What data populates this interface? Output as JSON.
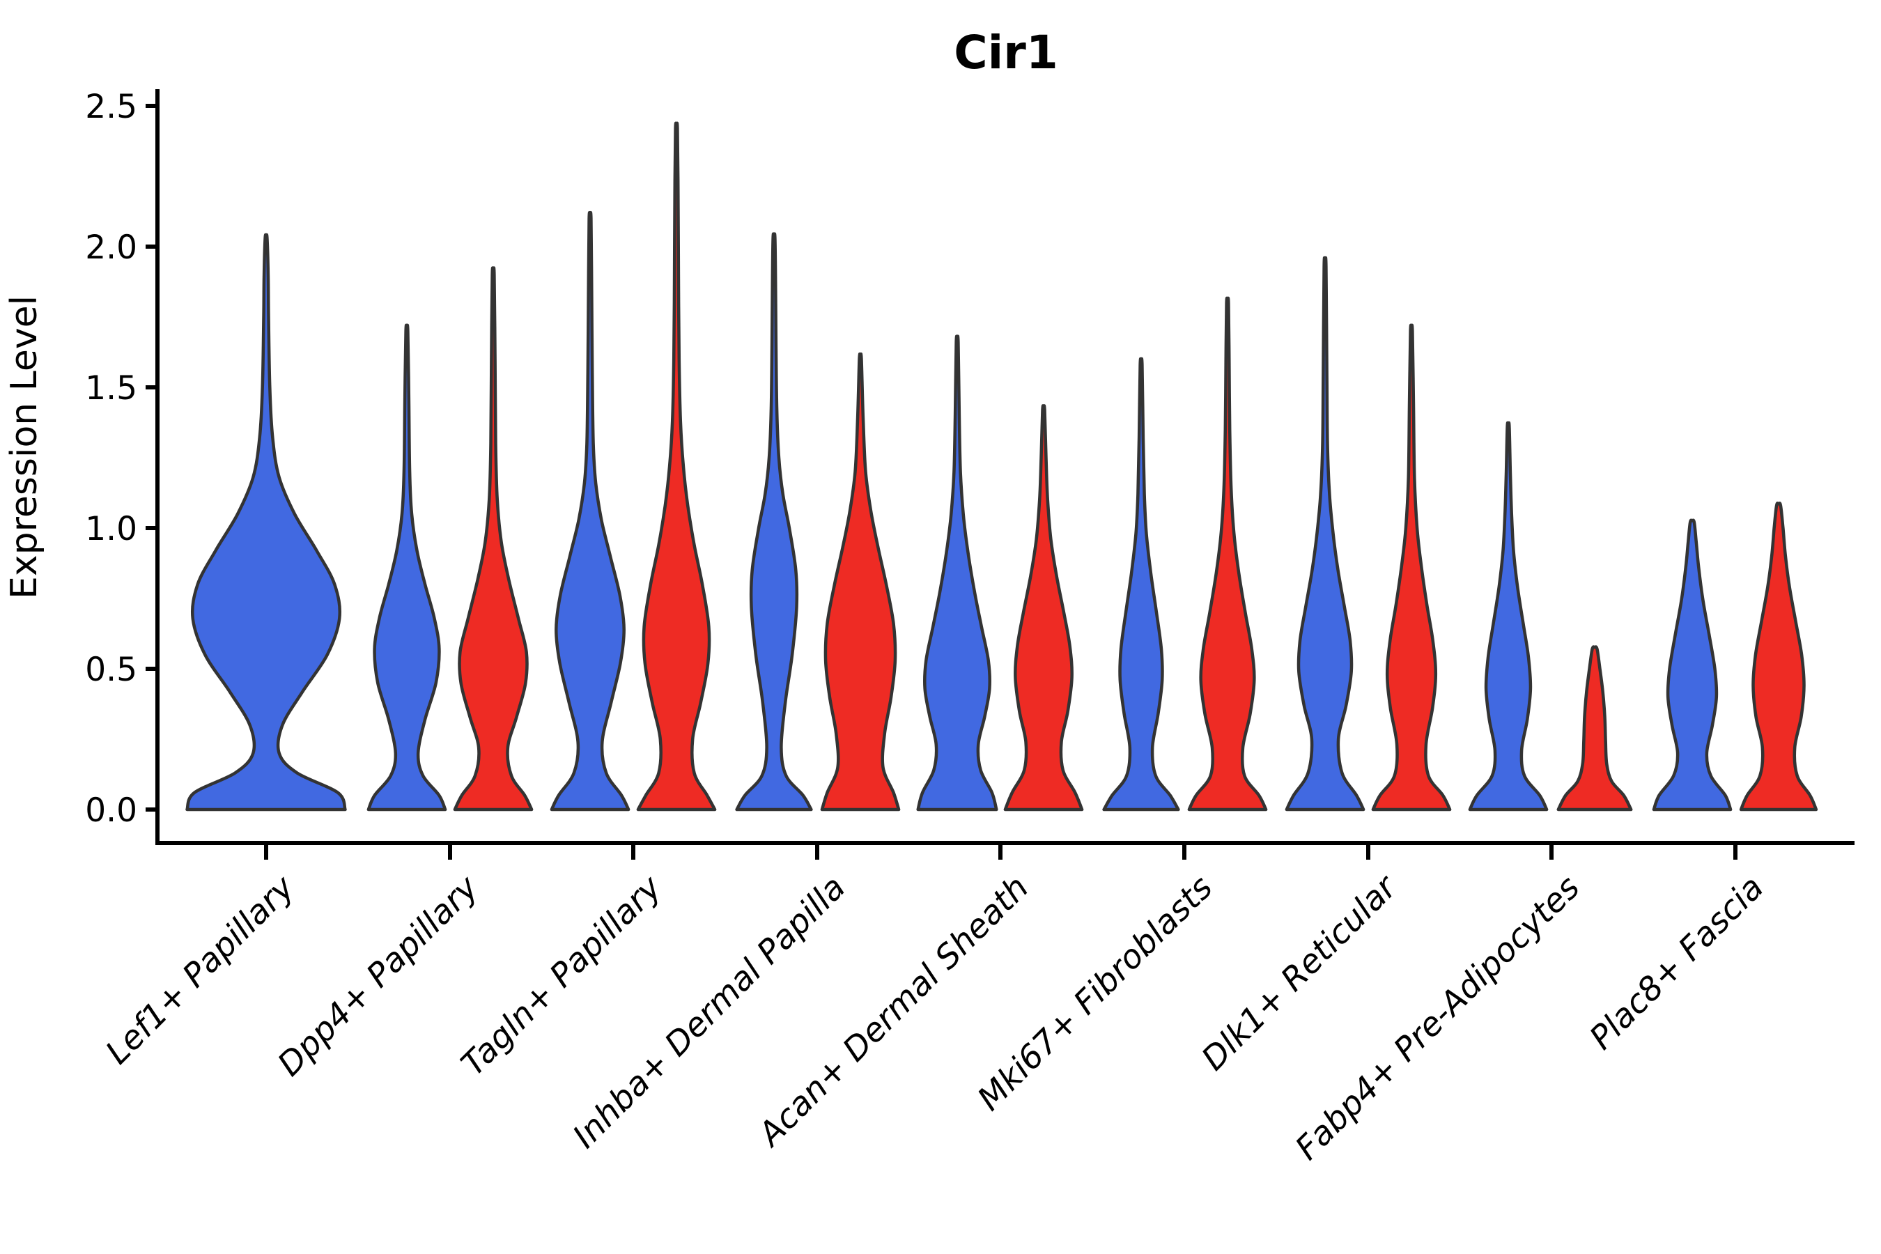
{
  "title": "Cir1",
  "y_axis": {
    "label": "Expression Level",
    "tick_labels": [
      "0.0",
      "0.5",
      "1.0",
      "1.5",
      "2.0",
      "2.5"
    ],
    "tick_values": [
      0,
      0.5,
      1.0,
      1.5,
      2.0,
      2.5
    ]
  },
  "colors": {
    "blue": "#4169E1",
    "red": "#EE2B24",
    "edge": "#333333",
    "axis": "#000000",
    "background": "#ffffff"
  },
  "chart_data": {
    "type": "violin",
    "split": true,
    "grid": false,
    "legend": "none",
    "title": "Cir1",
    "xlabel": "",
    "ylabel": "Expression Level",
    "ylim": [
      0,
      2.5
    ],
    "categories": [
      "Lef1+ Papillary",
      "Dpp4+ Papillary",
      "Tagln+ Papillary",
      "Inhba+ Dermal Papilla",
      "Acan+ Dermal Sheath",
      "Mki67+ Fibroblasts",
      "Dlk1+ Reticular",
      "Fabp4+ Pre-Adipocytes",
      "Plac8+ Fascia"
    ],
    "series": [
      {
        "name": "blue",
        "max_expression": [
          2.03,
          1.7,
          2.1,
          2.03,
          1.66,
          1.58,
          1.93,
          1.36,
          1.02
        ]
      },
      {
        "name": "red",
        "max_expression": [
          null,
          1.9,
          2.42,
          1.6,
          1.42,
          1.8,
          1.7,
          0.57,
          1.08
        ]
      }
    ],
    "violins": [
      {
        "category_index": 0,
        "side": "full",
        "color": "blue",
        "max": 2.03,
        "profile": [
          [
            0,
            0.97
          ],
          [
            0.06,
            0.88
          ],
          [
            0.13,
            0.38
          ],
          [
            0.2,
            0.16
          ],
          [
            0.3,
            0.2
          ],
          [
            0.42,
            0.45
          ],
          [
            0.55,
            0.75
          ],
          [
            0.68,
            0.9
          ],
          [
            0.8,
            0.84
          ],
          [
            0.92,
            0.62
          ],
          [
            1.05,
            0.35
          ],
          [
            1.18,
            0.16
          ],
          [
            1.32,
            0.08
          ],
          [
            1.5,
            0.045
          ],
          [
            1.75,
            0.03
          ],
          [
            1.9,
            0.025
          ],
          [
            2.03,
            0.012
          ]
        ]
      },
      {
        "category_index": 1,
        "side": "left",
        "color": "blue",
        "max": 1.7,
        "profile": [
          [
            0,
            0.95
          ],
          [
            0.05,
            0.8
          ],
          [
            0.12,
            0.4
          ],
          [
            0.2,
            0.28
          ],
          [
            0.32,
            0.45
          ],
          [
            0.45,
            0.72
          ],
          [
            0.57,
            0.8
          ],
          [
            0.68,
            0.68
          ],
          [
            0.8,
            0.45
          ],
          [
            0.92,
            0.25
          ],
          [
            1.05,
            0.12
          ],
          [
            1.2,
            0.07
          ],
          [
            1.45,
            0.05
          ],
          [
            1.7,
            0.02
          ]
        ]
      },
      {
        "category_index": 1,
        "side": "right",
        "color": "red",
        "max": 1.9,
        "profile": [
          [
            0,
            0.95
          ],
          [
            0.05,
            0.78
          ],
          [
            0.12,
            0.45
          ],
          [
            0.22,
            0.36
          ],
          [
            0.33,
            0.58
          ],
          [
            0.45,
            0.8
          ],
          [
            0.56,
            0.82
          ],
          [
            0.68,
            0.62
          ],
          [
            0.82,
            0.38
          ],
          [
            0.95,
            0.2
          ],
          [
            1.1,
            0.1
          ],
          [
            1.3,
            0.06
          ],
          [
            1.6,
            0.045
          ],
          [
            1.9,
            0.02
          ]
        ]
      },
      {
        "category_index": 2,
        "side": "left",
        "color": "blue",
        "max": 2.1,
        "profile": [
          [
            0,
            0.95
          ],
          [
            0.05,
            0.78
          ],
          [
            0.13,
            0.4
          ],
          [
            0.24,
            0.3
          ],
          [
            0.38,
            0.52
          ],
          [
            0.52,
            0.75
          ],
          [
            0.64,
            0.84
          ],
          [
            0.76,
            0.74
          ],
          [
            0.9,
            0.5
          ],
          [
            1.03,
            0.28
          ],
          [
            1.16,
            0.14
          ],
          [
            1.3,
            0.08
          ],
          [
            1.55,
            0.055
          ],
          [
            1.85,
            0.04
          ],
          [
            2.1,
            0.015
          ]
        ]
      },
      {
        "category_index": 2,
        "side": "right",
        "color": "red",
        "max": 2.42,
        "profile": [
          [
            0,
            0.95
          ],
          [
            0.05,
            0.76
          ],
          [
            0.13,
            0.44
          ],
          [
            0.25,
            0.4
          ],
          [
            0.38,
            0.6
          ],
          [
            0.52,
            0.78
          ],
          [
            0.65,
            0.8
          ],
          [
            0.8,
            0.64
          ],
          [
            0.94,
            0.44
          ],
          [
            1.08,
            0.28
          ],
          [
            1.22,
            0.17
          ],
          [
            1.38,
            0.1
          ],
          [
            1.6,
            0.065
          ],
          [
            1.9,
            0.05
          ],
          [
            2.2,
            0.04
          ],
          [
            2.42,
            0.015
          ]
        ]
      },
      {
        "category_index": 3,
        "side": "left",
        "color": "blue",
        "max": 2.03,
        "profile": [
          [
            0,
            0.92
          ],
          [
            0.05,
            0.72
          ],
          [
            0.12,
            0.3
          ],
          [
            0.22,
            0.18
          ],
          [
            0.38,
            0.28
          ],
          [
            0.55,
            0.45
          ],
          [
            0.72,
            0.56
          ],
          [
            0.85,
            0.54
          ],
          [
            1.0,
            0.38
          ],
          [
            1.12,
            0.22
          ],
          [
            1.25,
            0.12
          ],
          [
            1.42,
            0.07
          ],
          [
            1.65,
            0.05
          ],
          [
            1.85,
            0.04
          ],
          [
            2.03,
            0.015
          ]
        ]
      },
      {
        "category_index": 3,
        "side": "right",
        "color": "red",
        "max": 1.6,
        "profile": [
          [
            0,
            0.95
          ],
          [
            0.06,
            0.82
          ],
          [
            0.15,
            0.56
          ],
          [
            0.27,
            0.6
          ],
          [
            0.4,
            0.76
          ],
          [
            0.53,
            0.86
          ],
          [
            0.66,
            0.82
          ],
          [
            0.8,
            0.64
          ],
          [
            0.93,
            0.44
          ],
          [
            1.06,
            0.26
          ],
          [
            1.2,
            0.13
          ],
          [
            1.38,
            0.07
          ],
          [
            1.6,
            0.025
          ]
        ]
      },
      {
        "category_index": 4,
        "side": "left",
        "color": "blue",
        "max": 1.66,
        "profile": [
          [
            0,
            0.97
          ],
          [
            0.06,
            0.86
          ],
          [
            0.14,
            0.58
          ],
          [
            0.23,
            0.52
          ],
          [
            0.33,
            0.68
          ],
          [
            0.43,
            0.8
          ],
          [
            0.53,
            0.77
          ],
          [
            0.65,
            0.6
          ],
          [
            0.78,
            0.42
          ],
          [
            0.92,
            0.26
          ],
          [
            1.05,
            0.15
          ],
          [
            1.2,
            0.08
          ],
          [
            1.4,
            0.05
          ],
          [
            1.66,
            0.02
          ]
        ]
      },
      {
        "category_index": 4,
        "side": "right",
        "color": "red",
        "max": 1.42,
        "profile": [
          [
            0,
            0.95
          ],
          [
            0.06,
            0.78
          ],
          [
            0.14,
            0.48
          ],
          [
            0.24,
            0.44
          ],
          [
            0.35,
            0.6
          ],
          [
            0.47,
            0.7
          ],
          [
            0.58,
            0.65
          ],
          [
            0.7,
            0.5
          ],
          [
            0.83,
            0.32
          ],
          [
            0.96,
            0.18
          ],
          [
            1.1,
            0.1
          ],
          [
            1.25,
            0.06
          ],
          [
            1.42,
            0.025
          ]
        ]
      },
      {
        "category_index": 5,
        "side": "left",
        "color": "blue",
        "max": 1.58,
        "profile": [
          [
            0,
            0.92
          ],
          [
            0.05,
            0.72
          ],
          [
            0.12,
            0.36
          ],
          [
            0.22,
            0.28
          ],
          [
            0.34,
            0.42
          ],
          [
            0.46,
            0.52
          ],
          [
            0.57,
            0.5
          ],
          [
            0.7,
            0.38
          ],
          [
            0.84,
            0.24
          ],
          [
            0.98,
            0.13
          ],
          [
            1.12,
            0.08
          ],
          [
            1.32,
            0.05
          ],
          [
            1.58,
            0.02
          ]
        ]
      },
      {
        "category_index": 5,
        "side": "right",
        "color": "red",
        "max": 1.8,
        "profile": [
          [
            0,
            0.95
          ],
          [
            0.05,
            0.78
          ],
          [
            0.12,
            0.42
          ],
          [
            0.22,
            0.38
          ],
          [
            0.34,
            0.56
          ],
          [
            0.46,
            0.66
          ],
          [
            0.57,
            0.6
          ],
          [
            0.7,
            0.44
          ],
          [
            0.84,
            0.28
          ],
          [
            0.98,
            0.16
          ],
          [
            1.14,
            0.09
          ],
          [
            1.35,
            0.055
          ],
          [
            1.6,
            0.04
          ],
          [
            1.8,
            0.02
          ]
        ]
      },
      {
        "category_index": 6,
        "side": "left",
        "color": "blue",
        "max": 1.93,
        "profile": [
          [
            0,
            0.95
          ],
          [
            0.05,
            0.78
          ],
          [
            0.13,
            0.42
          ],
          [
            0.25,
            0.33
          ],
          [
            0.37,
            0.52
          ],
          [
            0.49,
            0.65
          ],
          [
            0.6,
            0.62
          ],
          [
            0.72,
            0.48
          ],
          [
            0.85,
            0.32
          ],
          [
            0.98,
            0.2
          ],
          [
            1.12,
            0.11
          ],
          [
            1.3,
            0.06
          ],
          [
            1.55,
            0.045
          ],
          [
            1.93,
            0.02
          ]
        ]
      },
      {
        "category_index": 6,
        "side": "right",
        "color": "red",
        "max": 1.7,
        "profile": [
          [
            0,
            0.95
          ],
          [
            0.05,
            0.78
          ],
          [
            0.12,
            0.42
          ],
          [
            0.23,
            0.36
          ],
          [
            0.36,
            0.52
          ],
          [
            0.48,
            0.6
          ],
          [
            0.6,
            0.53
          ],
          [
            0.73,
            0.38
          ],
          [
            0.87,
            0.24
          ],
          [
            1.0,
            0.14
          ],
          [
            1.18,
            0.075
          ],
          [
            1.45,
            0.05
          ],
          [
            1.7,
            0.02
          ]
        ]
      },
      {
        "category_index": 7,
        "side": "left",
        "color": "blue",
        "max": 1.36,
        "profile": [
          [
            0,
            0.95
          ],
          [
            0.05,
            0.78
          ],
          [
            0.12,
            0.4
          ],
          [
            0.21,
            0.33
          ],
          [
            0.32,
            0.47
          ],
          [
            0.43,
            0.55
          ],
          [
            0.54,
            0.5
          ],
          [
            0.66,
            0.37
          ],
          [
            0.79,
            0.23
          ],
          [
            0.92,
            0.13
          ],
          [
            1.06,
            0.08
          ],
          [
            1.2,
            0.05
          ],
          [
            1.36,
            0.025
          ]
        ]
      },
      {
        "category_index": 7,
        "side": "right",
        "color": "red",
        "max": 0.57,
        "profile": [
          [
            0,
            0.9
          ],
          [
            0.05,
            0.72
          ],
          [
            0.1,
            0.42
          ],
          [
            0.16,
            0.3
          ],
          [
            0.24,
            0.27
          ],
          [
            0.33,
            0.25
          ],
          [
            0.42,
            0.2
          ],
          [
            0.5,
            0.13
          ],
          [
            0.57,
            0.06
          ]
        ]
      },
      {
        "category_index": 8,
        "side": "left",
        "color": "blue",
        "max": 1.02,
        "profile": [
          [
            0,
            0.95
          ],
          [
            0.05,
            0.82
          ],
          [
            0.12,
            0.46
          ],
          [
            0.2,
            0.36
          ],
          [
            0.3,
            0.5
          ],
          [
            0.4,
            0.6
          ],
          [
            0.5,
            0.56
          ],
          [
            0.62,
            0.42
          ],
          [
            0.74,
            0.27
          ],
          [
            0.86,
            0.16
          ],
          [
            0.95,
            0.1
          ],
          [
            1.02,
            0.05
          ]
        ]
      },
      {
        "category_index": 8,
        "side": "right",
        "color": "red",
        "max": 1.08,
        "profile": [
          [
            0,
            0.93
          ],
          [
            0.05,
            0.78
          ],
          [
            0.12,
            0.46
          ],
          [
            0.22,
            0.4
          ],
          [
            0.33,
            0.56
          ],
          [
            0.44,
            0.63
          ],
          [
            0.55,
            0.57
          ],
          [
            0.67,
            0.42
          ],
          [
            0.79,
            0.27
          ],
          [
            0.9,
            0.17
          ],
          [
            1.0,
            0.11
          ],
          [
            1.08,
            0.05
          ]
        ]
      }
    ]
  }
}
